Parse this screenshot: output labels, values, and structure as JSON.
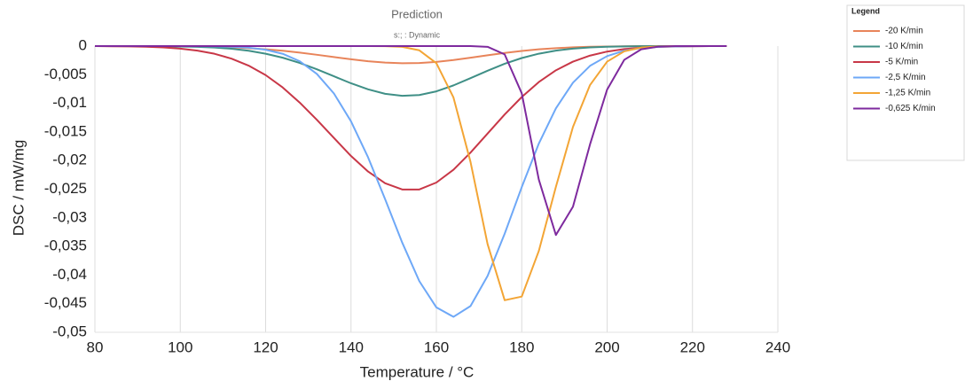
{
  "chart_data": {
    "type": "line",
    "title": "Prediction",
    "subtitle": "s:; : Dynamic",
    "x_label": "Temperature / °C",
    "y_label": "DSC / mW/mg",
    "legend_title": "Legend",
    "legend_position": "outside-right",
    "grid": "x",
    "xlim": [
      80,
      240
    ],
    "xticks": [
      80,
      100,
      120,
      140,
      160,
      180,
      200,
      220,
      240
    ],
    "ylim": [
      -0.05,
      0
    ],
    "yticks": [
      0,
      {
        "value": -0.005,
        "label": "-0,005"
      },
      {
        "value": -0.01,
        "label": "-0,01"
      },
      {
        "value": -0.015,
        "label": "-0,015"
      },
      {
        "value": -0.02,
        "label": "-0,02"
      },
      {
        "value": -0.025,
        "label": "-0,025"
      },
      {
        "value": -0.03,
        "label": "-0,03"
      },
      {
        "value": -0.035,
        "label": "-0,035"
      },
      {
        "value": -0.04,
        "label": "-0,04"
      },
      {
        "value": -0.045,
        "label": "-0,045"
      },
      {
        "value": -0.05,
        "label": "-0,05"
      }
    ],
    "x": [
      80,
      84,
      88,
      92,
      96,
      100,
      104,
      108,
      112,
      116,
      120,
      124,
      128,
      132,
      136,
      140,
      144,
      148,
      152,
      156,
      160,
      164,
      168,
      172,
      176,
      180,
      184,
      188,
      192,
      196,
      200,
      204,
      208,
      212,
      216,
      220,
      224,
      228
    ],
    "series": [
      {
        "name": "-20 K/min",
        "color": "#e8845a",
        "values": [
          0,
          0,
          0,
          0,
          -1e-05,
          -3e-05,
          -7e-05,
          -0.00013,
          -0.00022,
          -0.00036,
          -0.00056,
          -0.00082,
          -0.00114,
          -0.00152,
          -0.00192,
          -0.00231,
          -0.00265,
          -0.00289,
          -0.003,
          -0.00296,
          -0.00276,
          -0.00243,
          -0.00203,
          -0.0016,
          -0.0012,
          -0.00085,
          -0.00057,
          -0.00036,
          -0.00022,
          -0.00012,
          -7e-05,
          -3e-05,
          -1e-05,
          0,
          0,
          0,
          0,
          0
        ]
      },
      {
        "name": "-10 K/min",
        "color": "#3f8f86",
        "values": [
          0,
          0,
          0,
          -1e-05,
          -3e-05,
          -7e-05,
          -0.00014,
          -0.00026,
          -0.00047,
          -0.00081,
          -0.00133,
          -0.00203,
          -0.00295,
          -0.00406,
          -0.00528,
          -0.0065,
          -0.00756,
          -0.00834,
          -0.00869,
          -0.00855,
          -0.00791,
          -0.00687,
          -0.0056,
          -0.0043,
          -0.00309,
          -0.00209,
          -0.00133,
          -0.00079,
          -0.00045,
          -0.00023,
          -0.00012,
          -5e-05,
          -2e-05,
          -1e-05,
          0,
          0,
          0,
          0
        ]
      },
      {
        "name": "-5 K/min",
        "color": "#c83747",
        "values": [
          -1e-05,
          -3e-05,
          -6e-05,
          -0.00012,
          -0.00024,
          -0.00045,
          -0.00079,
          -0.00134,
          -0.00219,
          -0.00341,
          -0.00507,
          -0.00723,
          -0.00988,
          -0.01288,
          -0.01605,
          -0.0192,
          -0.02192,
          -0.02397,
          -0.02505,
          -0.02505,
          -0.02384,
          -0.0216,
          -0.0186,
          -0.01528,
          -0.01195,
          -0.0089,
          -0.00628,
          -0.00423,
          -0.00272,
          -0.00166,
          -0.00096,
          -0.00053,
          -0.00028,
          -0.00014,
          -7e-05,
          -3e-05,
          -1e-05,
          0
        ]
      },
      {
        "name": "-2,5 K/min",
        "color": "#6ea8f7",
        "values": [
          0,
          0,
          0,
          0,
          0,
          -1e-05,
          -2e-05,
          -4e-05,
          -0.00011,
          -0.00028,
          -0.00064,
          -0.00135,
          -0.00265,
          -0.00487,
          -0.00828,
          -0.01315,
          -0.01944,
          -0.02677,
          -0.03434,
          -0.04106,
          -0.04565,
          -0.0473,
          -0.04541,
          -0.04016,
          -0.03278,
          -0.02464,
          -0.01703,
          -0.01088,
          -0.00639,
          -0.00345,
          -0.00175,
          -0.0008,
          -0.00034,
          -0.00013,
          -5e-05,
          -2e-05,
          -1e-05,
          0
        ]
      },
      {
        "name": "-1,25 K/min",
        "color": "#f3a535",
        "values": [
          0,
          0,
          0,
          0,
          0,
          0,
          0,
          0,
          0,
          0,
          0,
          0,
          0,
          0,
          0,
          0,
          0,
          -2e-05,
          -0.00014,
          -0.00074,
          -0.00299,
          -0.00897,
          -0.02025,
          -0.03461,
          -0.0444,
          -0.04376,
          -0.03579,
          -0.0246,
          -0.01413,
          -0.0068,
          -0.00272,
          -0.00092,
          -0.00026,
          -6e-05,
          -1e-05,
          0,
          0,
          0
        ]
      },
      {
        "name": "-0,625 K/min",
        "color": "#7e2a9e",
        "values": [
          0,
          0,
          0,
          0,
          0,
          0,
          0,
          0,
          0,
          0,
          0,
          0,
          0,
          0,
          0,
          0,
          0,
          0,
          0,
          0,
          0,
          0,
          -1e-05,
          -0.00013,
          -0.00145,
          -0.00825,
          -0.02333,
          -0.033,
          -0.02806,
          -0.01716,
          -0.0076,
          -0.00241,
          -0.00056,
          -9e-05,
          -1e-05,
          0,
          0,
          0
        ]
      }
    ]
  }
}
